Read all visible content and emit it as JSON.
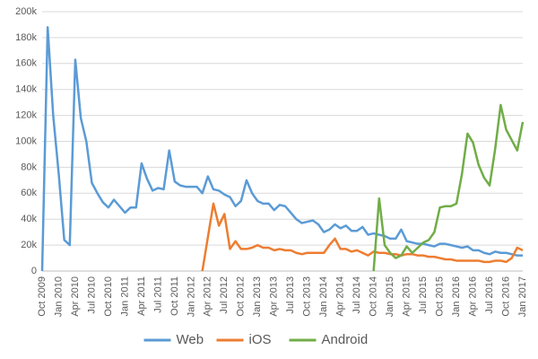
{
  "chart_data": {
    "type": "line",
    "categories": [
      "Oct 2009",
      null,
      null,
      "Jan 2010",
      null,
      null,
      "Apr 2010",
      null,
      null,
      "Jul 2010",
      null,
      null,
      "Oct 2010",
      null,
      null,
      "Jan 2011",
      null,
      null,
      "Apr 2011",
      null,
      null,
      "Jul 2011",
      null,
      null,
      "Oct 2011",
      null,
      null,
      "Jan 2012",
      null,
      null,
      "Apr 2012",
      null,
      null,
      "Jul 2012",
      null,
      null,
      "Oct 2012",
      null,
      null,
      "Jan 2013",
      null,
      null,
      "Apr 2013",
      null,
      null,
      "Jul 2013",
      null,
      null,
      "Oct 2013",
      null,
      null,
      "Jan 2014",
      null,
      null,
      "Apr 2014",
      null,
      null,
      "Jul 2014",
      null,
      null,
      "Oct 2014",
      null,
      null,
      "Jan 2015",
      null,
      null,
      "Apr 2015",
      null,
      null,
      "Jul 2015",
      null,
      null,
      "Oct 2015",
      null,
      null,
      "Jan 2016",
      null,
      null,
      "Apr 2016",
      null,
      null,
      "Jul 2016",
      null,
      null,
      "Oct 2016",
      null,
      null,
      "Jan 2017"
    ],
    "series": [
      {
        "name": "Web",
        "color": "#5b9bd5",
        "values": [
          0,
          188000,
          120000,
          75000,
          24000,
          20000,
          163000,
          118000,
          100000,
          68000,
          60000,
          53000,
          49000,
          55000,
          50000,
          45000,
          49000,
          49000,
          83000,
          71000,
          62000,
          64000,
          63000,
          93000,
          69000,
          66000,
          65000,
          65000,
          65000,
          60000,
          73000,
          63000,
          62000,
          59000,
          57000,
          50000,
          54000,
          70000,
          60000,
          54000,
          52000,
          52000,
          47000,
          51000,
          50000,
          45000,
          40000,
          37000,
          38000,
          39000,
          36000,
          30000,
          32000,
          36000,
          33000,
          35000,
          31000,
          31000,
          34000,
          28000,
          29000,
          28000,
          27000,
          25000,
          25000,
          32000,
          23000,
          22000,
          21000,
          21000,
          20000,
          19000,
          21000,
          21000,
          20000,
          19000,
          18000,
          19000,
          16000,
          16000,
          14000,
          13000,
          15000,
          14000,
          14000,
          13000,
          12000,
          12000
        ]
      },
      {
        "name": "iOS",
        "color": "#ed7d31",
        "values": [
          null,
          null,
          null,
          null,
          null,
          null,
          null,
          null,
          null,
          null,
          null,
          null,
          null,
          null,
          null,
          null,
          null,
          null,
          null,
          null,
          null,
          null,
          null,
          null,
          null,
          null,
          null,
          null,
          null,
          0,
          26000,
          52000,
          35000,
          44000,
          17000,
          23000,
          17000,
          17000,
          18000,
          20000,
          18000,
          18000,
          16000,
          17000,
          16000,
          16000,
          14000,
          13000,
          14000,
          14000,
          14000,
          14000,
          20000,
          25000,
          17000,
          17000,
          15000,
          16000,
          14000,
          12000,
          15000,
          14000,
          14000,
          13000,
          13000,
          12000,
          13000,
          13000,
          12000,
          12000,
          11000,
          11000,
          10000,
          9000,
          9000,
          8000,
          8000,
          8000,
          8000,
          8000,
          7000,
          7000,
          8000,
          8000,
          7000,
          10000,
          18000,
          16000
        ]
      },
      {
        "name": "Android",
        "color": "#70ad47",
        "values": [
          null,
          null,
          null,
          null,
          null,
          null,
          null,
          null,
          null,
          null,
          null,
          null,
          null,
          null,
          null,
          null,
          null,
          null,
          null,
          null,
          null,
          null,
          null,
          null,
          null,
          null,
          null,
          null,
          null,
          null,
          null,
          null,
          null,
          null,
          null,
          null,
          null,
          null,
          null,
          null,
          null,
          null,
          null,
          null,
          null,
          null,
          null,
          null,
          null,
          null,
          null,
          null,
          null,
          null,
          null,
          null,
          null,
          null,
          null,
          null,
          0,
          56000,
          20000,
          14000,
          10000,
          12000,
          19000,
          14000,
          18000,
          22000,
          24000,
          30000,
          49000,
          50000,
          50000,
          52000,
          75000,
          106000,
          99000,
          82000,
          72000,
          66000,
          94000,
          128000,
          109000,
          101000,
          93000,
          115000
        ]
      }
    ],
    "ylim": [
      0,
      200000
    ],
    "yticks": [
      0,
      {
        "value": 20000,
        "label": "20k"
      },
      {
        "value": 40000,
        "label": "40k"
      },
      {
        "value": 60000,
        "label": "60k"
      },
      {
        "value": 80000,
        "label": "80k"
      },
      {
        "value": 100000,
        "label": "100k"
      },
      {
        "value": 120000,
        "label": "120k"
      },
      {
        "value": 140000,
        "label": "140k"
      },
      {
        "value": 160000,
        "label": "160k"
      },
      {
        "value": 180000,
        "label": "180k"
      },
      {
        "value": 200000,
        "label": "200k"
      }
    ],
    "grid": true,
    "legend": "bottom"
  }
}
